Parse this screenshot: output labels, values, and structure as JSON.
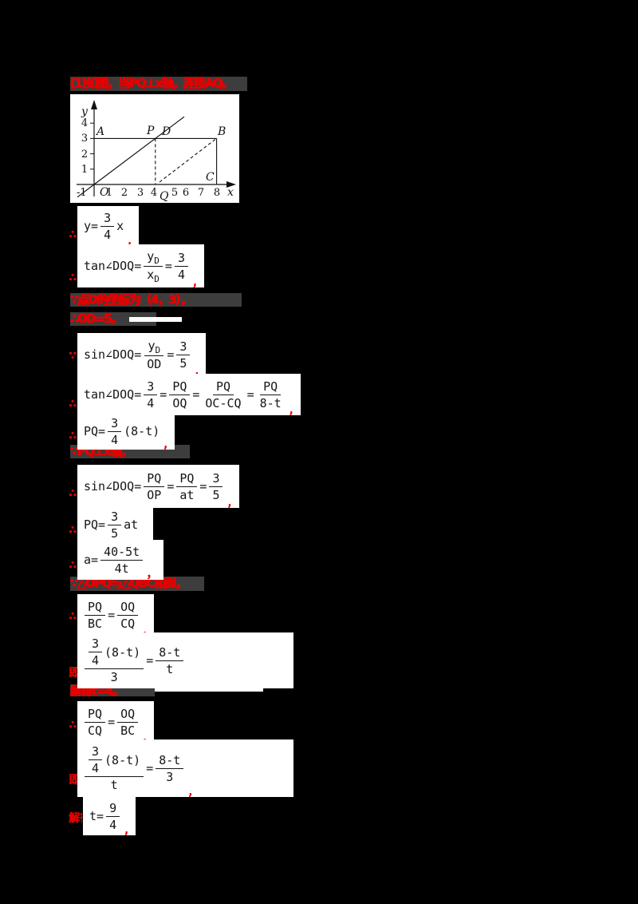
{
  "page": {
    "background": "#000000",
    "box_bg": "#ffffff",
    "red": "#e60000",
    "strip_gray": "#3d3d3d"
  },
  "headers": {
    "h1": "(1)如图，当PQ⊥x轴，连接AQ。",
    "h2": "∵点D的坐标为（4，3），",
    "h3": "∴OD=5。",
    "h4": "∵PQ⊥x轴，",
    "h5": "∵△OPQ与△QBC相似，",
    "h6": "解得t=4。"
  },
  "fragments": {
    "f1": "∴",
    "f2": "∴",
    "f3": "∵",
    "f4": "∴",
    "f5": "∴",
    "f6": "∴",
    "f7": "∴",
    "f8": "∴",
    "f9": "∴",
    "f10": "即",
    "f11": "∴",
    "f12": "即",
    "f13": "解得"
  },
  "figure": {
    "axis_labels": {
      "x": "x",
      "y": "y",
      "origin": "O",
      "neg_one": "-1"
    },
    "x_ticks": [
      "1",
      "2",
      "3",
      "4",
      "5",
      "6",
      "7",
      "8"
    ],
    "y_ticks": [
      "1",
      "2",
      "3",
      "4"
    ],
    "point_labels": {
      "A": "A",
      "P": "P",
      "D": "D",
      "B": "B",
      "C": "C",
      "Q": "Q"
    },
    "geometry": {
      "line_OD": "y = (3/4)x through O, P(4,3), D(4,3)",
      "rect_points": {
        "A": [
          0,
          3
        ],
        "B": [
          8,
          3
        ],
        "C": [
          8,
          0
        ]
      },
      "P": [
        4,
        3
      ],
      "Q": [
        4,
        0
      ],
      "dashed_segments": [
        "PQ vertical x=4",
        "QB diagonal"
      ]
    }
  },
  "formulas": {
    "f1": {
      "tokens": [
        {
          "t": "s",
          "v": "y="
        },
        {
          "t": "f",
          "n": "3",
          "d": "4"
        },
        {
          "t": "s",
          "v": "x"
        },
        {
          "t": "r",
          "v": ","
        }
      ]
    },
    "f2": {
      "tokens": [
        {
          "t": "s",
          "v": "tan∠DOQ="
        },
        {
          "t": "f",
          "n": [
            {
              "t": "sub",
              "b": "y",
              "s": "D"
            }
          ],
          "d": [
            {
              "t": "sub",
              "b": "x",
              "s": "D"
            }
          ]
        },
        {
          "t": "s",
          "v": "="
        },
        {
          "t": "f",
          "n": "3",
          "d": "4"
        },
        {
          "t": "r",
          "v": ","
        }
      ]
    },
    "f3": {
      "tokens": [
        {
          "t": "s",
          "v": "sin∠DOQ="
        },
        {
          "t": "f",
          "n": [
            {
              "t": "sub",
              "b": "y",
              "s": "D"
            }
          ],
          "d": "OD"
        },
        {
          "t": "s",
          "v": "="
        },
        {
          "t": "f",
          "n": "3",
          "d": "5"
        },
        {
          "t": "r",
          "v": ","
        }
      ]
    },
    "f4": {
      "tokens": [
        {
          "t": "s",
          "v": "tan∠DOQ="
        },
        {
          "t": "f",
          "n": "3",
          "d": "4"
        },
        {
          "t": "s",
          "v": "="
        },
        {
          "t": "f",
          "n": "PQ",
          "d": "OQ"
        },
        {
          "t": "s",
          "v": "="
        },
        {
          "t": "f",
          "n": "PQ",
          "d": "OC-CQ"
        },
        {
          "t": "s",
          "v": "="
        },
        {
          "t": "f",
          "n": "PQ",
          "d": "8-t"
        },
        {
          "t": "r",
          "v": ","
        }
      ]
    },
    "f5": {
      "tokens": [
        {
          "t": "s",
          "v": "PQ="
        },
        {
          "t": "f",
          "n": "3",
          "d": "4"
        },
        {
          "t": "s",
          "v": "(8-t)"
        },
        {
          "t": "r",
          "v": ","
        }
      ]
    },
    "f6": {
      "tokens": [
        {
          "t": "s",
          "v": "sin∠DOQ="
        },
        {
          "t": "f",
          "n": "PQ",
          "d": "OP"
        },
        {
          "t": "s",
          "v": "="
        },
        {
          "t": "f",
          "n": "PQ",
          "d": "at"
        },
        {
          "t": "s",
          "v": "="
        },
        {
          "t": "f",
          "n": "3",
          "d": "5"
        },
        {
          "t": "r",
          "v": ","
        }
      ]
    },
    "f7": {
      "tokens": [
        {
          "t": "s",
          "v": "PQ="
        },
        {
          "t": "f",
          "n": "3",
          "d": "5"
        },
        {
          "t": "s",
          "v": "at"
        },
        {
          "t": "r",
          "v": ","
        }
      ]
    },
    "f8": {
      "tokens": [
        {
          "t": "s",
          "v": "a="
        },
        {
          "t": "f",
          "n": "40-5t",
          "d": "4t"
        },
        {
          "t": "r",
          "v": "，"
        }
      ]
    },
    "f9": {
      "tokens": [
        {
          "t": "f",
          "n": "PQ",
          "d": "BC"
        },
        {
          "t": "s",
          "v": "="
        },
        {
          "t": "f",
          "n": "OQ",
          "d": "CQ"
        },
        {
          "t": "r",
          "v": ","
        }
      ]
    },
    "f10": {
      "tokens": [
        {
          "t": "f",
          "n": [
            {
              "t": "f",
              "n": "3",
              "d": "4"
            },
            {
              "t": "s",
              "v": "(8-t)"
            }
          ],
          "d": "3"
        },
        {
          "t": "s",
          "v": "="
        },
        {
          "t": "f",
          "n": "8-t",
          "d": "t"
        }
      ]
    },
    "f11": {
      "tokens": [
        {
          "t": "f",
          "n": "PQ",
          "d": "CQ"
        },
        {
          "t": "s",
          "v": "="
        },
        {
          "t": "f",
          "n": "OQ",
          "d": "BC"
        },
        {
          "t": "r",
          "v": ","
        }
      ]
    },
    "f12": {
      "tokens": [
        {
          "t": "f",
          "n": [
            {
              "t": "f",
              "n": "3",
              "d": "4"
            },
            {
              "t": "s",
              "v": "(8-t)"
            }
          ],
          "d": "t"
        },
        {
          "t": "s",
          "v": "="
        },
        {
          "t": "f",
          "n": "8-t",
          "d": "3"
        },
        {
          "t": "r",
          "v": ","
        }
      ]
    },
    "f13": {
      "tokens": [
        {
          "t": "s",
          "v": "t="
        },
        {
          "t": "f",
          "n": "9",
          "d": "4"
        },
        {
          "t": "r",
          "v": ","
        }
      ]
    }
  }
}
